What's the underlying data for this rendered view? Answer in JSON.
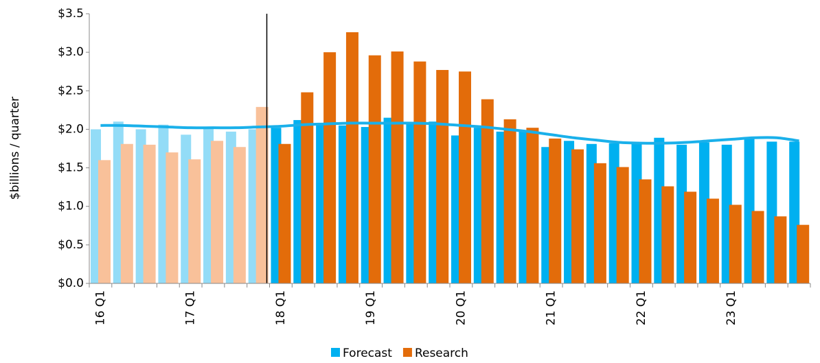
{
  "chart_data": {
    "type": "bar",
    "y_label": "$billions / quarter",
    "categories": [
      "16 Q1",
      null,
      null,
      null,
      "17 Q1",
      null,
      null,
      null,
      "18 Q1",
      null,
      null,
      null,
      "19 Q1",
      null,
      null,
      null,
      "20 Q1",
      null,
      null,
      null,
      "21 Q1",
      null,
      null,
      null,
      "22 Q1",
      null,
      null,
      null,
      "23 Q1",
      null,
      null,
      null
    ],
    "series": [
      {
        "name": "Forecast",
        "color": "#00b0f0",
        "faded_color": "#93dcf7",
        "values": [
          2.0,
          2.1,
          2.0,
          2.06,
          1.93,
          2.03,
          1.97,
          2.0,
          2.02,
          2.12,
          2.08,
          2.05,
          2.03,
          2.15,
          2.08,
          2.1,
          1.92,
          2.02,
          1.97,
          1.97,
          1.77,
          1.85,
          1.81,
          1.82,
          1.82,
          1.89,
          1.8,
          1.83,
          1.8,
          1.89,
          1.84,
          1.84
        ]
      },
      {
        "name": "Research",
        "color": "#e36c0a",
        "faded_color": "#f9c19a",
        "values": [
          1.6,
          1.81,
          1.8,
          1.7,
          1.61,
          1.85,
          1.77,
          2.29,
          1.81,
          2.48,
          3.0,
          3.26,
          2.96,
          3.01,
          2.88,
          2.77,
          2.75,
          2.39,
          2.13,
          2.02,
          1.88,
          1.74,
          1.56,
          1.51,
          1.35,
          1.26,
          1.19,
          1.1,
          1.02,
          0.94,
          0.87,
          0.76
        ]
      }
    ],
    "trend": {
      "color": "#1ab0ea",
      "values": [
        2.05,
        2.05,
        2.04,
        2.03,
        2.02,
        2.02,
        2.02,
        2.03,
        2.04,
        2.06,
        2.07,
        2.08,
        2.08,
        2.08,
        2.08,
        2.07,
        2.05,
        2.03,
        2.0,
        1.97,
        1.93,
        1.89,
        1.86,
        1.83,
        1.82,
        1.82,
        1.83,
        1.85,
        1.87,
        1.89,
        1.89,
        1.85
      ]
    },
    "faded_until": 8,
    "ylim": [
      0,
      3.5
    ],
    "yticks": [
      {
        "value": 0,
        "label": "$0.0"
      },
      {
        "value": 0.5,
        "label": "$0.5"
      },
      {
        "value": 1,
        "label": "$1.0"
      },
      {
        "value": 1.5,
        "label": "$1.5"
      },
      {
        "value": 2,
        "label": "$2.0"
      },
      {
        "value": 2.5,
        "label": "$2.5"
      },
      {
        "value": 3,
        "label": "$3.0"
      },
      {
        "value": 3.5,
        "label": "$3.5"
      }
    ],
    "legend": "bottom"
  }
}
